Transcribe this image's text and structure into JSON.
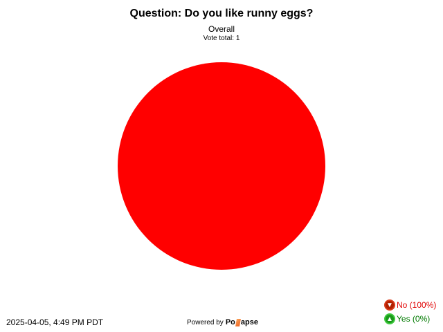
{
  "chart_data": {
    "type": "pie",
    "title": "Question: Do you like runny eggs?",
    "subtitle": "Overall",
    "vote_total_label": "Vote total: 1",
    "slices": [
      {
        "label": "No",
        "value": 1,
        "percent": 100,
        "color": "#ff0000",
        "legend": "No (100%)",
        "text_color": "#e00000",
        "icon": "thumbs-down-icon"
      },
      {
        "label": "Yes",
        "value": 0,
        "percent": 0,
        "color": "#00aa00",
        "legend": "Yes (0%)",
        "text_color": "#007a00",
        "icon": "thumbs-up-icon"
      }
    ],
    "legend_position": "bottom-right"
  },
  "footer": {
    "timestamp": "2025-04-05, 4:49 PM PDT",
    "powered_by": "Powered by",
    "logo_text": "Pollapse",
    "logo_left": "Po",
    "logo_right": "apse"
  }
}
